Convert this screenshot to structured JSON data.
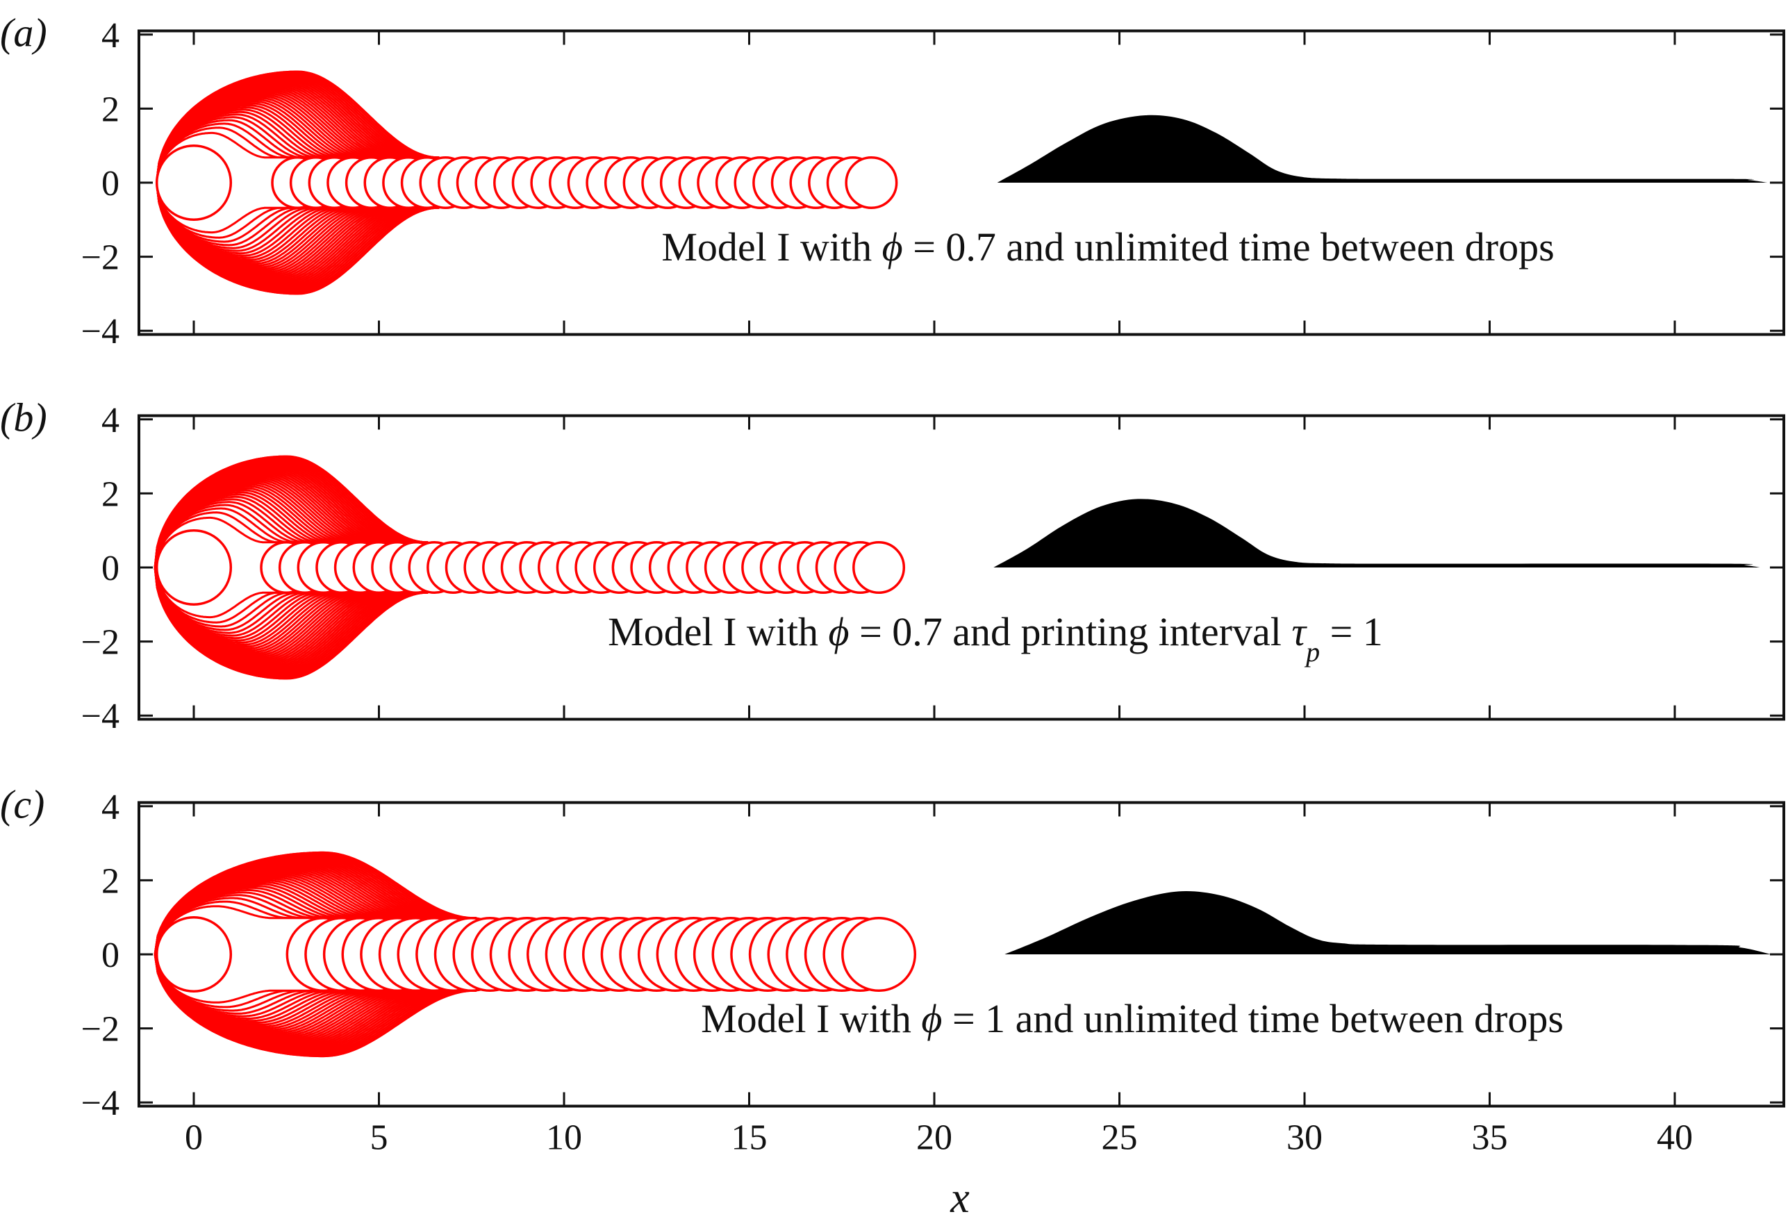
{
  "chart_data": {
    "type": "line",
    "xlabel": "x",
    "xlim": [
      -1.48,
      43.0
    ],
    "xticks": [
      0,
      5,
      10,
      15,
      20,
      25,
      30,
      35,
      40
    ],
    "xtick_labels": [
      "0",
      "5",
      "10",
      "15",
      "20",
      "25",
      "30",
      "35",
      "40"
    ],
    "ylim": [
      -4.1,
      4.1
    ],
    "yticks": [
      -4,
      -2,
      0,
      2,
      4
    ],
    "ytick_labels": [
      "−4",
      "−2",
      "0",
      "2",
      "4"
    ],
    "grid": false,
    "colors": {
      "drops": "#ff0000",
      "profile": "#000000",
      "axes": "#111111"
    },
    "panels": [
      {
        "label": "(a)",
        "annotation": [
          {
            "t": "Model I with "
          },
          {
            "t": "ϕ",
            "i": true
          },
          {
            "t": " = 0.7 and unlimited time between drops"
          }
        ],
        "drops": {
          "first_radius": 1.0,
          "bulge_start": -1.0,
          "bulge_peak_x": 2.8,
          "bulge_height": 3.0,
          "bulge_end": 6.6,
          "tail_radius": 0.68,
          "spacing": 0.5,
          "last_center": 18.6
        },
        "profile": [
          [
            21.7,
            0
          ],
          [
            22.6,
            0.5
          ],
          [
            23.6,
            1.1
          ],
          [
            24.6,
            1.6
          ],
          [
            25.7,
            1.82
          ],
          [
            26.7,
            1.72
          ],
          [
            27.6,
            1.35
          ],
          [
            28.5,
            0.8
          ],
          [
            29.2,
            0.35
          ],
          [
            29.9,
            0.16
          ],
          [
            30.8,
            0.11
          ],
          [
            33,
            0.1
          ],
          [
            41.3,
            0.1
          ],
          [
            42.0,
            0.07
          ],
          [
            42.5,
            0
          ]
        ]
      },
      {
        "label": "(b)",
        "annotation": [
          {
            "t": "Model I with "
          },
          {
            "t": "ϕ",
            "i": true
          },
          {
            "t": " = 0.7 and printing interval "
          },
          {
            "t": "τ",
            "i": true
          },
          {
            "t": "p",
            "i": true,
            "sub": true
          },
          {
            "t": " = 1"
          }
        ],
        "drops": {
          "first_radius": 1.0,
          "bulge_start": -1.05,
          "bulge_peak_x": 2.5,
          "bulge_height": 3.0,
          "bulge_end": 6.3,
          "tail_radius": 0.68,
          "spacing": 0.5,
          "last_center": 18.6
        },
        "profile": [
          [
            21.6,
            0
          ],
          [
            22.5,
            0.5
          ],
          [
            23.5,
            1.15
          ],
          [
            24.5,
            1.65
          ],
          [
            25.5,
            1.85
          ],
          [
            26.5,
            1.72
          ],
          [
            27.4,
            1.35
          ],
          [
            28.3,
            0.8
          ],
          [
            29.0,
            0.35
          ],
          [
            29.7,
            0.16
          ],
          [
            30.6,
            0.11
          ],
          [
            33,
            0.1
          ],
          [
            41.3,
            0.1
          ],
          [
            41.9,
            0.06
          ],
          [
            42.3,
            0
          ]
        ]
      },
      {
        "label": "(c)",
        "annotation": [
          {
            "t": "Model I with "
          },
          {
            "t": "ϕ",
            "i": true
          },
          {
            "t": " = 1 and unlimited time between drops"
          }
        ],
        "drops": {
          "first_radius": 1.0,
          "bulge_start": -1.05,
          "bulge_peak_x": 3.5,
          "bulge_height": 2.75,
          "bulge_end": 7.6,
          "tail_radius": 0.98,
          "spacing": 0.5,
          "last_center": 18.5
        },
        "profile": [
          [
            21.9,
            0
          ],
          [
            23.0,
            0.45
          ],
          [
            24.2,
            1.0
          ],
          [
            25.4,
            1.45
          ],
          [
            26.6,
            1.7
          ],
          [
            27.7,
            1.6
          ],
          [
            28.7,
            1.25
          ],
          [
            29.6,
            0.75
          ],
          [
            30.3,
            0.42
          ],
          [
            31.0,
            0.3
          ],
          [
            32.5,
            0.26
          ],
          [
            40.8,
            0.25
          ],
          [
            41.8,
            0.18
          ],
          [
            42.6,
            0
          ]
        ]
      }
    ]
  }
}
